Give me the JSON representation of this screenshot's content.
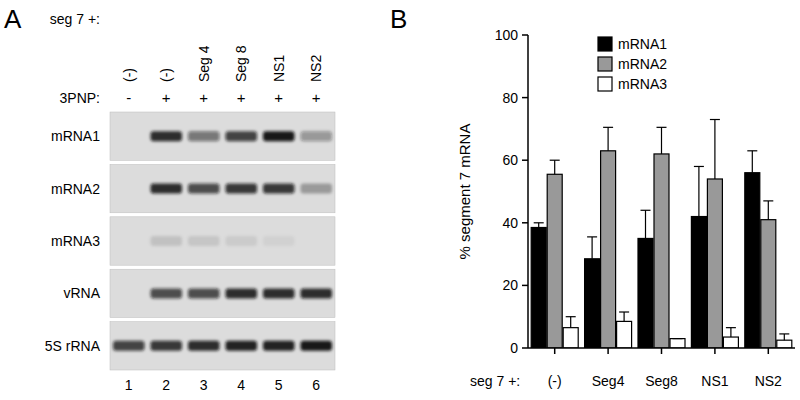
{
  "chart_data": {
    "type": "bar",
    "panel_label": "B",
    "y_label": "% segment 7 mRNA",
    "x_label": "seg 7 +:",
    "categories": [
      "(-)",
      "Seg4",
      "Seg8",
      "NS1",
      "NS2"
    ],
    "series": [
      {
        "name": "mRNA1",
        "color": "#000000",
        "values": [
          38.5,
          28.5,
          35,
          42,
          56
        ],
        "errors": [
          1.5,
          7,
          9,
          16,
          7
        ]
      },
      {
        "name": "mRNA2",
        "color": "#999999",
        "values": [
          55.5,
          63,
          62,
          54,
          41
        ],
        "errors": [
          4.5,
          7.5,
          8.5,
          19,
          6
        ]
      },
      {
        "name": "mRNA3",
        "color": "#ffffff",
        "values": [
          6.5,
          8.5,
          3,
          3.5,
          2.5
        ],
        "errors": [
          3.5,
          3,
          0,
          3,
          2
        ]
      }
    ],
    "ylim": [
      0,
      100
    ],
    "yticks": [
      0,
      20,
      40,
      60,
      80,
      100
    ],
    "legend": "top-left"
  },
  "blot": {
    "panel_label": "A",
    "row_header": "seg 7 +:",
    "lanes": [
      "(-)",
      "(-)",
      "Seg 4",
      "Seg 8",
      "NS1",
      "NS2"
    ],
    "treatment_label": "3PNP:",
    "treatment": [
      "-",
      "+",
      "+",
      "+",
      "+",
      "+"
    ],
    "lane_numbers": [
      1,
      2,
      3,
      4,
      5,
      6
    ],
    "rows": [
      {
        "label": "mRNA1",
        "intensity": [
          0,
          0.85,
          0.5,
          0.75,
          0.95,
          0.35
        ]
      },
      {
        "label": "mRNA2",
        "intensity": [
          0,
          0.85,
          0.7,
          0.8,
          0.8,
          0.3
        ]
      },
      {
        "label": "mRNA3",
        "intensity": [
          0,
          0.12,
          0.1,
          0.08,
          0.05,
          0
        ]
      },
      {
        "label": "vRNA",
        "intensity": [
          0,
          0.7,
          0.7,
          0.85,
          0.85,
          0.85
        ]
      },
      {
        "label": "5S rRNA",
        "intensity": [
          0.75,
          0.8,
          0.85,
          0.9,
          0.9,
          0.95
        ]
      }
    ]
  }
}
